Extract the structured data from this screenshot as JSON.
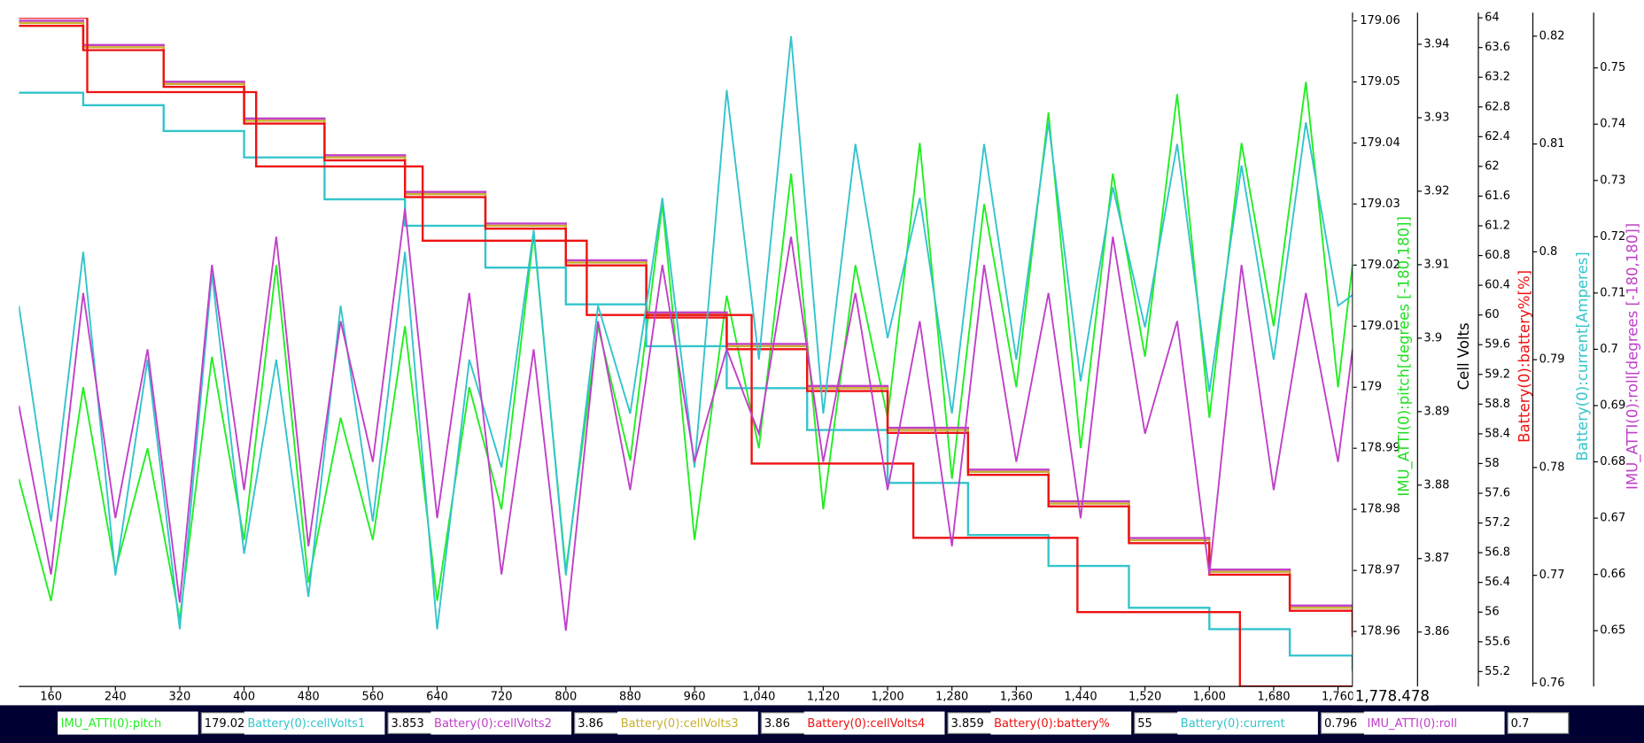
{
  "chart_data": {
    "type": "line",
    "xlim": [
      120,
      1778
    ],
    "xticks": [
      160,
      240,
      320,
      400,
      480,
      560,
      640,
      720,
      800,
      880,
      960,
      {
        "value": 1040,
        "label": "1,040"
      },
      {
        "value": 1120,
        "label": "1,120"
      },
      {
        "value": 1200,
        "label": "1,200"
      },
      {
        "value": 1280,
        "label": "1,280"
      },
      {
        "value": 1360,
        "label": "1,360"
      },
      {
        "value": 1440,
        "label": "1,440"
      },
      {
        "value": 1520,
        "label": "1,520"
      },
      {
        "value": 1600,
        "label": "1,600"
      },
      {
        "value": 1680,
        "label": "1,680"
      },
      {
        "value": 1760,
        "label": "1,760"
      }
    ],
    "cursor": {
      "value": 1778.478,
      "label": "1,778.478"
    },
    "axes": [
      {
        "label": "IMU_ATTI(0):pitch[degrees [-180,180]]",
        "color": "#22dd22",
        "ylim": [
          178.951,
          179.0605
        ],
        "yticks": [
          178.96,
          178.97,
          178.98,
          178.99,
          179,
          179.01,
          179.02,
          179.03,
          179.04,
          179.05,
          179.06
        ],
        "series": [
          {
            "name": "IMU_ATTI(0):pitch",
            "color": "#22ee22",
            "readout": 179.02,
            "x": [
              120,
              160,
              200,
              240,
              280,
              320,
              360,
              400,
              440,
              480,
              520,
              560,
              600,
              640,
              680,
              720,
              760,
              800,
              840,
              880,
              920,
              960,
              1000,
              1040,
              1080,
              1120,
              1160,
              1200,
              1240,
              1280,
              1320,
              1360,
              1400,
              1440,
              1480,
              1520,
              1560,
              1600,
              1640,
              1680,
              1720,
              1760,
              1778
            ],
            "values": [
              178.985,
              178.965,
              179.0,
              178.97,
              178.99,
              178.962,
              179.005,
              178.975,
              179.02,
              178.968,
              178.995,
              178.975,
              179.01,
              178.965,
              179.0,
              178.98,
              179.025,
              178.97,
              179.01,
              178.988,
              179.03,
              178.975,
              179.015,
              178.99,
              179.035,
              178.98,
              179.02,
              178.995,
              179.04,
              178.985,
              179.03,
              179.0,
              179.045,
              178.99,
              179.035,
              179.005,
              179.048,
              178.995,
              179.04,
              179.01,
              179.05,
              179.0,
              179.02
            ]
          }
        ]
      },
      {
        "label": "Cell Volts",
        "color": "#000000",
        "ylim": [
          3.8526,
          3.9436
        ],
        "yticks": [
          3.86,
          3.87,
          3.88,
          3.89,
          3.9,
          3.91,
          3.92,
          3.93,
          3.94
        ],
        "series": [
          {
            "name": "Battery(0):cellVolts1",
            "color": "#33c4cc",
            "readout": 3.853,
            "step": true,
            "x": [
              120,
              200,
              300,
              400,
              500,
              600,
              700,
              800,
              900,
              1000,
              1100,
              1200,
              1300,
              1400,
              1500,
              1600,
              1700,
              1778
            ],
            "values": [
              3.9334,
              3.9317,
              3.9282,
              3.9246,
              3.9189,
              3.9153,
              3.9096,
              3.9046,
              3.8989,
              3.8932,
              3.8875,
              3.8803,
              3.8732,
              3.869,
              3.8633,
              3.8604,
              3.8568,
              3.8547
            ]
          },
          {
            "name": "Battery(0):cellVolts2",
            "color": "#c040c8",
            "readout": 3.86,
            "step": true,
            "x": [
              120,
              200,
              300,
              400,
              500,
              600,
              700,
              800,
              900,
              1000,
              1100,
              1200,
              1300,
              1400,
              1500,
              1600,
              1700,
              1778
            ],
            "values": [
              3.9432,
              3.9399,
              3.9349,
              3.9299,
              3.9249,
              3.9199,
              3.9156,
              3.9106,
              3.9035,
              3.8992,
              3.8935,
              3.8878,
              3.8821,
              3.8778,
              3.8728,
              3.8685,
              3.8636,
              3.86
            ]
          },
          {
            "name": "Battery(0):cellVolts3",
            "color": "#c8b030",
            "readout": 3.86,
            "step": true,
            "x": [
              120,
              200,
              300,
              400,
              500,
              600,
              700,
              800,
              900,
              1000,
              1100,
              1200,
              1300,
              1400,
              1500,
              1600,
              1700,
              1778
            ],
            "values": [
              3.9429,
              3.9396,
              3.9346,
              3.9296,
              3.9246,
              3.9196,
              3.9153,
              3.9103,
              3.9032,
              3.8989,
              3.8932,
              3.8875,
              3.8818,
              3.8775,
              3.8725,
              3.8682,
              3.8633,
              3.8597
            ]
          },
          {
            "name": "Battery(0):cellVolts4",
            "color": "#ee1111",
            "readout": 3.859,
            "step": true,
            "x": [
              120,
              200,
              300,
              400,
              500,
              600,
              700,
              800,
              900,
              1000,
              1100,
              1200,
              1300,
              1400,
              1500,
              1600,
              1700,
              1778
            ],
            "values": [
              3.9425,
              3.9392,
              3.9342,
              3.9292,
              3.9242,
              3.9192,
              3.9149,
              3.9099,
              3.9028,
              3.8985,
              3.8928,
              3.8871,
              3.8814,
              3.8771,
              3.8721,
              3.8678,
              3.8629,
              3.8593
            ]
          }
        ]
      },
      {
        "label": "Battery(0):battery%[%]",
        "color": "#ee1111",
        "ylim": [
          55,
          64
        ],
        "yticks": [
          55.2,
          55.6,
          56,
          56.4,
          56.8,
          57.2,
          57.6,
          58,
          58.4,
          58.8,
          59.2,
          59.6,
          60,
          60.4,
          60.8,
          61.2,
          61.6,
          62,
          62.4,
          62.8,
          63.2,
          63.6,
          64
        ],
        "series": [
          {
            "name": "Battery(0):battery%",
            "color": "#ee1111",
            "readout": 55,
            "step": true,
            "x": [
              120,
              205,
              415,
              622,
              826,
              1031,
              1232,
              1436,
              1638,
              1778
            ],
            "values": [
              64,
              63,
              62,
              61,
              60,
              58,
              57,
              56,
              55,
              55
            ]
          }
        ]
      },
      {
        "label": "Battery(0):current[Amperes]",
        "color": "#33c4cc",
        "ylim": [
          0.7597,
          0.8217
        ],
        "yticks": [
          0.76,
          0.77,
          0.78,
          0.79,
          0.8,
          0.81,
          0.82
        ],
        "series": [
          {
            "name": "Battery(0):current",
            "color": "#33c4cc",
            "readout": 0.796,
            "x": [
              120,
              160,
              200,
              240,
              280,
              320,
              360,
              400,
              440,
              480,
              520,
              560,
              600,
              640,
              680,
              720,
              760,
              800,
              840,
              880,
              920,
              960,
              1000,
              1040,
              1080,
              1120,
              1160,
              1200,
              1240,
              1280,
              1320,
              1360,
              1400,
              1440,
              1480,
              1520,
              1560,
              1600,
              1640,
              1680,
              1720,
              1760,
              1778
            ],
            "values": [
              0.795,
              0.775,
              0.8,
              0.77,
              0.79,
              0.765,
              0.798,
              0.772,
              0.79,
              0.768,
              0.795,
              0.775,
              0.8,
              0.765,
              0.79,
              0.78,
              0.802,
              0.77,
              0.795,
              0.785,
              0.805,
              0.78,
              0.815,
              0.79,
              0.82,
              0.785,
              0.81,
              0.792,
              0.805,
              0.785,
              0.81,
              0.79,
              0.812,
              0.788,
              0.806,
              0.793,
              0.81,
              0.787,
              0.808,
              0.79,
              0.812,
              0.795,
              0.796
            ]
          }
        ]
      },
      {
        "label": "IMU_ATTI(0):roll[degrees [-180,180]]",
        "color": "#c040c8",
        "ylim": [
          0.6401,
          0.7589
        ],
        "yticks": [
          0.65,
          0.66,
          0.67,
          0.68,
          0.69,
          0.7,
          0.71,
          0.72,
          0.73,
          0.74,
          0.75
        ],
        "series": [
          {
            "name": "IMU_ATTI(0):roll",
            "color": "#c040c8",
            "readout": 0.7,
            "x": [
              120,
              160,
              200,
              240,
              280,
              320,
              360,
              400,
              440,
              480,
              520,
              560,
              600,
              640,
              680,
              720,
              760,
              800,
              840,
              880,
              920,
              960,
              1000,
              1040,
              1080,
              1120,
              1160,
              1200,
              1240,
              1280,
              1320,
              1360,
              1400,
              1440,
              1480,
              1520,
              1560,
              1600,
              1640,
              1680,
              1720,
              1760,
              1778
            ],
            "values": [
              0.69,
              0.66,
              0.71,
              0.67,
              0.7,
              0.655,
              0.715,
              0.675,
              0.72,
              0.665,
              0.705,
              0.68,
              0.725,
              0.67,
              0.71,
              0.66,
              0.7,
              0.65,
              0.705,
              0.675,
              0.715,
              0.68,
              0.7,
              0.685,
              0.72,
              0.68,
              0.71,
              0.675,
              0.705,
              0.665,
              0.715,
              0.68,
              0.71,
              0.67,
              0.72,
              0.685,
              0.705,
              0.66,
              0.715,
              0.675,
              0.71,
              0.68,
              0.7
            ]
          }
        ]
      }
    ]
  }
}
